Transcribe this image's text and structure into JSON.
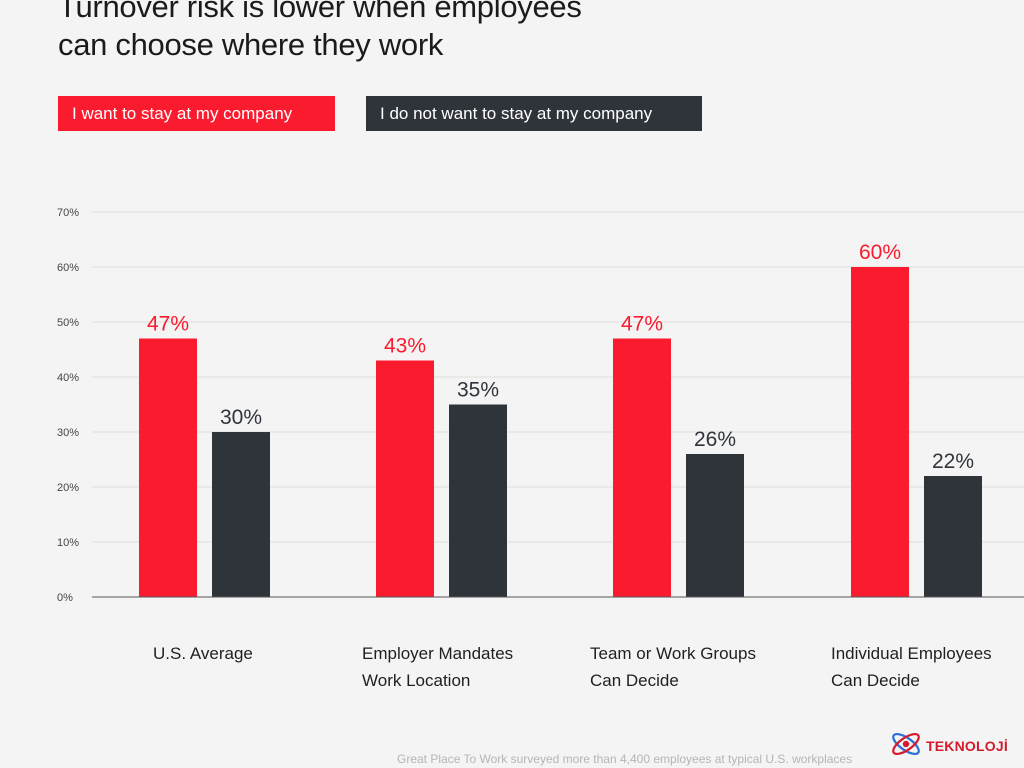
{
  "colors": {
    "stay": "#fa1b2e",
    "leave": "#2f343b",
    "grid": "#dedede",
    "axis": "#555555"
  },
  "chart_data": {
    "type": "bar",
    "title": [
      "Turnover risk is lower when employees",
      "can choose where they work"
    ],
    "legend": [
      {
        "name": "I want to stay at my company",
        "color": "#fa1b2e"
      },
      {
        "name": "I do not want to stay at my company",
        "color": "#2f343b"
      }
    ],
    "categories": [
      [
        "U.S. Average"
      ],
      [
        "Employer Mandates",
        "Work Location"
      ],
      [
        "Team or Work Groups",
        "Can Decide"
      ],
      [
        "Individual Employees",
        "Can Decide"
      ]
    ],
    "series": [
      {
        "name": "I want to stay at my company",
        "values": [
          47,
          43,
          47,
          60
        ],
        "labels": [
          "47%",
          "43%",
          "47%",
          "60%"
        ]
      },
      {
        "name": "I do not want to stay at my company",
        "values": [
          30,
          35,
          26,
          22
        ],
        "labels": [
          "30%",
          "35%",
          "26%",
          "22%"
        ]
      }
    ],
    "y_ticks": [
      "0%",
      "10%",
      "20%",
      "30%",
      "40%",
      "50%",
      "60%",
      "70%"
    ],
    "ylim": [
      0,
      70
    ],
    "grid": true,
    "legend_position": "top-left",
    "xlabel": "",
    "ylabel": ""
  },
  "footer": "Great Place To Work surveyed more than 4,400 employees at typical U.S. workplaces",
  "brand": {
    "text": "TEKNOLOJİ",
    "icon": "atom-logo-icon"
  }
}
